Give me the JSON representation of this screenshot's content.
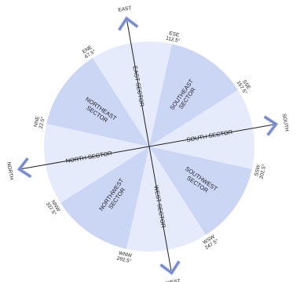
{
  "colors": {
    "sector_dark": "#cbd6f5",
    "sector_light": "#e5ebfa",
    "arrow": "#8ea2e6",
    "axis_line": "#222222",
    "background": "#ffffff"
  },
  "axis_labels": {
    "east": "EAST",
    "south": "SOUTH",
    "north": "NORTH",
    "west": "WEST"
  },
  "sectors": [
    {
      "id": "east",
      "label": "EAST SECTOR",
      "tone": "light"
    },
    {
      "id": "southeast",
      "label": "SOUTHEAST SECTOR",
      "tone": "dark"
    },
    {
      "id": "south",
      "label": "SOUTH SECTOR",
      "tone": "light"
    },
    {
      "id": "southwest",
      "label": "SOUTHWEST SECTOR",
      "tone": "dark"
    },
    {
      "id": "west",
      "label": "WEST SECTOR",
      "tone": "light"
    },
    {
      "id": "northwest",
      "label": "NORTHWEST SECTOR",
      "tone": "dark"
    },
    {
      "id": "north",
      "label": "NORTH SECTOR",
      "tone": "light"
    },
    {
      "id": "northeast",
      "label": "NORTHEAST SECTOR",
      "tone": "dark"
    }
  ],
  "boundaries": [
    {
      "name": "ESE",
      "bearing": "112.5°"
    },
    {
      "name": "SSE",
      "bearing": "157.5°"
    },
    {
      "name": "SSW",
      "bearing": "202.5°"
    },
    {
      "name": "WSW",
      "bearing": "247.5°"
    },
    {
      "name": "WNW",
      "bearing": "292.5°"
    },
    {
      "name": "NNW",
      "bearing": "337.5°"
    },
    {
      "name": "NNE",
      "bearing": "22.5°"
    },
    {
      "name": "ENE",
      "bearing": "67.5°"
    }
  ]
}
